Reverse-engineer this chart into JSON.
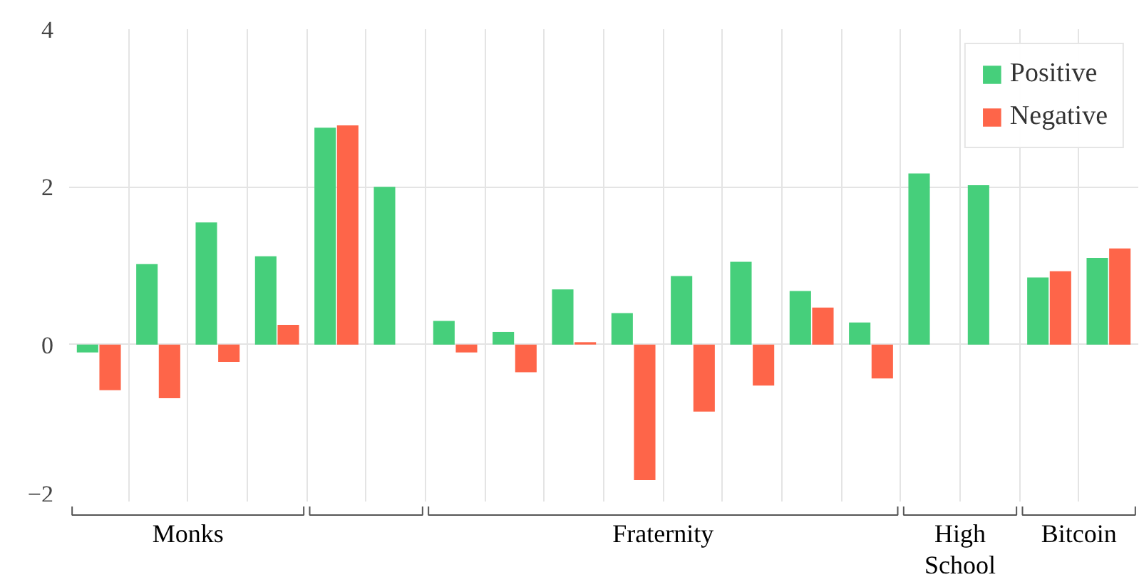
{
  "chart_data": {
    "type": "bar",
    "categories": [
      null,
      null,
      null,
      null,
      null,
      null,
      null,
      null,
      null,
      null,
      null,
      null,
      null,
      null,
      null,
      null,
      null,
      null
    ],
    "annotations": [
      "Monks",
      "Fraternity",
      "High School",
      "Bitcoin"
    ],
    "series": [
      {
        "name": "Positive",
        "color": "#46cf7b",
        "values": [
          -0.1,
          1.02,
          1.55,
          1.12,
          2.75,
          2.0,
          0.3,
          0.16,
          0.7,
          0.4,
          0.87,
          1.05,
          0.68,
          0.28,
          2.17,
          2.02,
          0.85,
          1.1
        ]
      },
      {
        "name": "Negative",
        "color": "#fe6549",
        "values": [
          -0.58,
          -0.68,
          -0.22,
          0.25,
          2.78,
          null,
          -0.1,
          -0.35,
          0.03,
          -1.72,
          -0.85,
          -0.52,
          0.47,
          -0.43,
          null,
          null,
          0.93,
          1.22
        ]
      }
    ],
    "ylim": [
      -2,
      4
    ],
    "yticks": [
      -2,
      0,
      2,
      4
    ],
    "grid": true,
    "legend": "top right"
  }
}
